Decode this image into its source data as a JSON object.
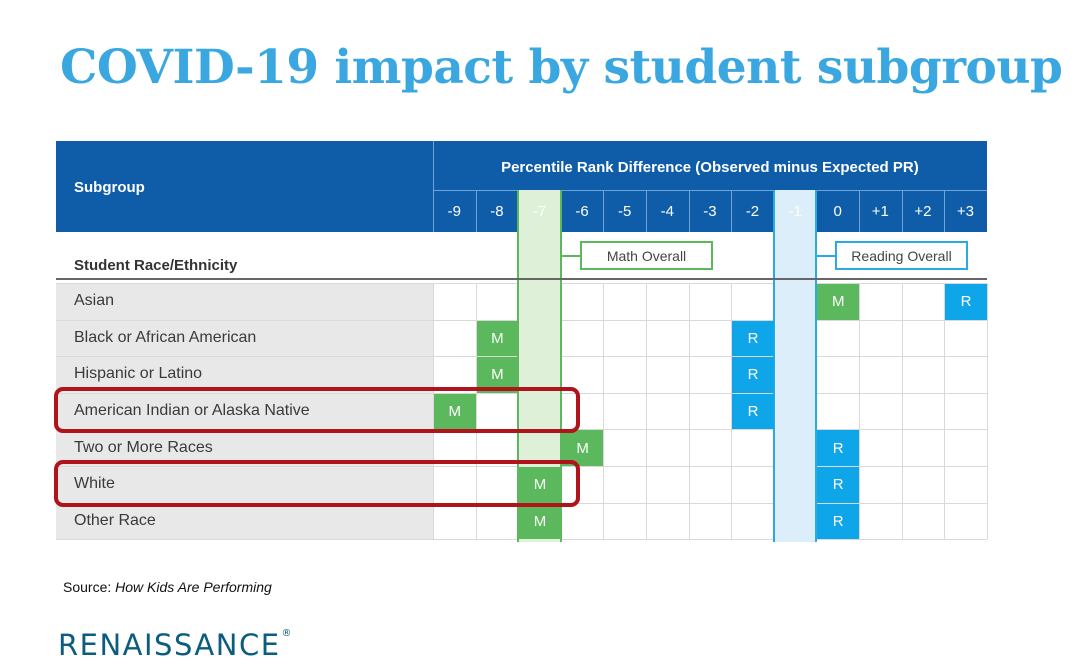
{
  "title": "COVID-19 impact by student subgroup",
  "chart_data": {
    "type": "table",
    "header": {
      "subgroup_label": "Subgroup",
      "axis_title": "Percentile Rank Difference (Observed minus Expected PR)",
      "columns": [
        "-9",
        "-8",
        "-7",
        "-6",
        "-5",
        "-4",
        "-3",
        "-2",
        "-1",
        "0",
        "+1",
        "+2",
        "+3"
      ]
    },
    "section_label": "Student Race/Ethnicity",
    "legend": {
      "math": {
        "label": "Math Overall",
        "value": -7,
        "color": "#5cb85c"
      },
      "reading": {
        "label": "Reading Overall",
        "value": -1,
        "color": "#29abe2"
      }
    },
    "marker_labels": {
      "math": "M",
      "reading": "R"
    },
    "rows": [
      {
        "label": "Asian",
        "math": 0,
        "reading": 3,
        "highlighted": false
      },
      {
        "label": "Black or African American",
        "math": -8,
        "reading": -2,
        "highlighted": false
      },
      {
        "label": "Hispanic or Latino",
        "math": -8,
        "reading": -2,
        "highlighted": false
      },
      {
        "label": "American Indian or Alaska Native",
        "math": -9,
        "reading": -2,
        "highlighted": true
      },
      {
        "label": "Two or More Races",
        "math": -6,
        "reading": 0,
        "highlighted": false
      },
      {
        "label": "White",
        "math": -7,
        "reading": 0,
        "highlighted": true
      },
      {
        "label": "Other Race",
        "math": -7,
        "reading": 0,
        "highlighted": false
      }
    ]
  },
  "source": {
    "prefix": "Source: ",
    "title": "How Kids Are Performing"
  },
  "logo": {
    "text": "RENAISSANCE",
    "mark": "®"
  }
}
